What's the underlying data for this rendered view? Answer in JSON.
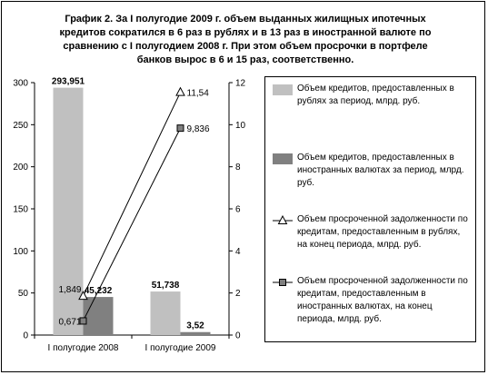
{
  "title": "График 2. За I полугодие 2009 г. объем выданных жилищных ипотечных кредитов сократился в 6 раз в рублях и в 13 раз в иностранной валюте по сравнению с I полугодием 2008 г. При этом объем просрочки в портфеле банков вырос в 6 и 15 раз, соответственно.",
  "colors": {
    "bar_rub": "#c0c0c0",
    "bar_fx": "#808080",
    "line": "#000000",
    "marker_square_fill": "#808080",
    "marker_triangle_fill": "#ffffff"
  },
  "chart_data": {
    "type": "bar",
    "categories": [
      "I полугодие 2008",
      "I полугодие 2009"
    ],
    "ylim_left": [
      0,
      300
    ],
    "yticks_left": [
      "0",
      "50",
      "100",
      "150",
      "200",
      "250",
      "300"
    ],
    "ylim_right": [
      0,
      12
    ],
    "yticks_right": [
      "0",
      "2",
      "4",
      "6",
      "8",
      "10",
      "12"
    ],
    "grid": false,
    "legend_position": "right",
    "series": [
      {
        "name": "Объем кредитов, предоставленных в рублях за период, млрд. руб.",
        "kind": "bar",
        "axis": "left",
        "values": [
          293.951,
          51.738
        ],
        "labels": [
          "293,951",
          "51,738"
        ]
      },
      {
        "name": "Объем кредитов, предоставленных в иностранных валютах за период, млрд. руб.",
        "kind": "bar",
        "axis": "left",
        "values": [
          45.232,
          3.52
        ],
        "labels": [
          "45,232",
          "3,52"
        ]
      },
      {
        "name": "Объем просроченной задолженности по кредитам, предоставленным в рублях, на конец периода, млрд. руб.",
        "kind": "line",
        "marker": "triangle",
        "axis": "right",
        "values": [
          1.849,
          11.54
        ],
        "labels": [
          "1,849",
          "11,54"
        ]
      },
      {
        "name": "Объем просроченной задолженности по кредитам, предоставленным в иностранных валютах, на конец периода, млрд. руб.",
        "kind": "line",
        "marker": "square",
        "axis": "right",
        "values": [
          0.671,
          9.836
        ],
        "labels": [
          "0,671",
          "9,836"
        ]
      }
    ]
  }
}
